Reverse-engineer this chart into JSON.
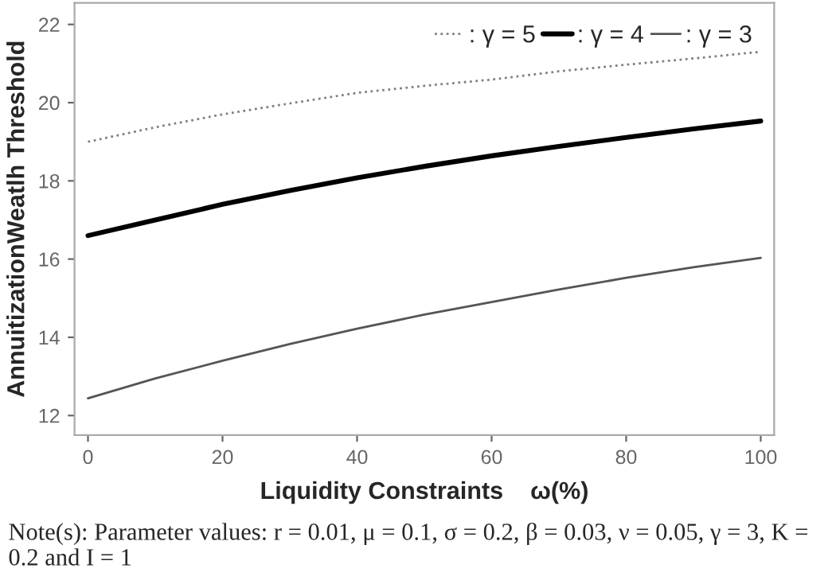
{
  "chart_data": {
    "type": "line",
    "xlabel": "Liquidity Constraints    ω(%)",
    "ylabel": "AnnuitizationWeatlh Threshold",
    "x": [
      0,
      10,
      20,
      30,
      40,
      50,
      60,
      70,
      80,
      90,
      100
    ],
    "series": [
      {
        "name": ": γ = 5",
        "color": "#808080",
        "line_style": "dotted",
        "values": [
          19.0,
          19.37,
          19.7,
          19.98,
          20.25,
          20.43,
          20.59,
          20.8,
          20.97,
          21.13,
          21.3
        ]
      },
      {
        "name": ": γ = 4",
        "color": "#000000",
        "line_style": "solid",
        "values": [
          16.6,
          17.0,
          17.4,
          17.75,
          18.08,
          18.37,
          18.64,
          18.88,
          19.11,
          19.33,
          19.53
        ]
      },
      {
        "name": ": γ = 3",
        "color": "#555555",
        "line_style": "solid",
        "values": [
          12.44,
          12.95,
          13.4,
          13.83,
          14.22,
          14.58,
          14.9,
          15.22,
          15.52,
          15.79,
          16.03
        ]
      }
    ],
    "xlim": [
      -2,
      102
    ],
    "ylim": [
      11.5,
      22.55
    ],
    "xticks": [
      0,
      20,
      40,
      60,
      80,
      100
    ],
    "yticks": [
      12,
      14,
      16,
      18,
      20,
      22
    ],
    "grid": false,
    "legend": "top right",
    "marker": "none",
    "annotations": [
      "Note(s): Parameter values: r = 0.01, μ = 0.1, σ = 0.2, β = 0.03, ν = 0.05, γ = 3, K = 0.2 and I = 1"
    ]
  }
}
